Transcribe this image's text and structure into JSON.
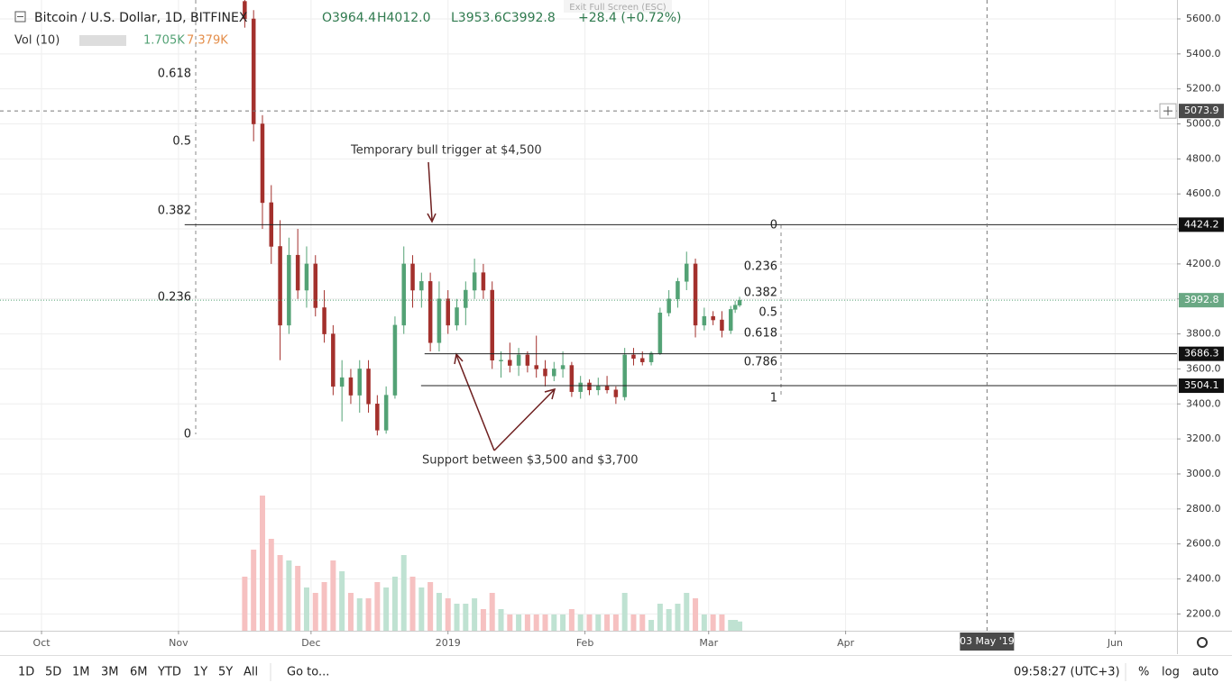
{
  "chart_data": {
    "type": "candlestick",
    "title": "Bitcoin / U.S. Dollar, 1D, BITFINEX",
    "ohlc_labels": [
      "O3964.4",
      "H4012.0",
      "L3953.6",
      "C3992.8",
      "+28.4 (+0.72%)"
    ],
    "volume_title": "Vol (10)",
    "volume_labels": [
      "1.705K",
      "7.379K"
    ],
    "exit_label": "Exit Full Screen (ESC)",
    "colors": {
      "up": "#53a275",
      "down": "#a3302c",
      "up_volume": "#bfe2d2",
      "down_volume": "#f6c1c1",
      "annotation": "#2626a8",
      "arrow": "#6e1f1f"
    },
    "x": [
      46,
      48,
      50,
      52,
      54,
      56,
      58,
      60,
      62,
      64,
      66,
      68,
      70,
      72,
      74,
      76,
      78,
      80,
      82,
      84,
      86,
      88,
      90,
      92,
      94,
      96,
      98,
      100,
      102,
      104,
      106,
      108,
      110,
      112,
      114,
      116,
      118,
      120,
      122,
      124,
      126,
      128,
      130,
      132,
      134,
      136,
      138,
      140,
      142,
      144,
      146,
      148,
      150,
      152,
      154,
      156,
      157,
      158
    ],
    "open": [
      5700,
      5600,
      5000,
      4550,
      4300,
      3850,
      4250,
      4050,
      4200,
      3950,
      3800,
      3500,
      3550,
      3450,
      3600,
      3400,
      3250,
      3450,
      3850,
      4200,
      4050,
      4100,
      3750,
      4000,
      3850,
      3950,
      4050,
      4150,
      4050,
      3650,
      3650,
      3620,
      3680,
      3620,
      3600,
      3560,
      3600,
      3620,
      3470,
      3520,
      3480,
      3500,
      3480,
      3440,
      3680,
      3660,
      3640,
      3690,
      3920,
      4000,
      4100,
      4200,
      3850,
      3900,
      3880,
      3820,
      3940,
      3964.4
    ],
    "high": [
      5720,
      5650,
      5050,
      4650,
      4450,
      4350,
      4400,
      4300,
      4250,
      4050,
      3850,
      3650,
      3600,
      3650,
      3650,
      3450,
      3500,
      3900,
      4300,
      4250,
      4150,
      4150,
      4100,
      4050,
      4000,
      4100,
      4230,
      4200,
      4100,
      3700,
      3750,
      3720,
      3700,
      3790,
      3650,
      3640,
      3700,
      3640,
      3560,
      3540,
      3550,
      3560,
      3500,
      3720,
      3720,
      3700,
      3700,
      3950,
      4050,
      4120,
      4270,
      4230,
      3950,
      3930,
      3930,
      3960,
      3990,
      4012.0
    ],
    "low": [
      5550,
      4900,
      4400,
      4200,
      3650,
      3800,
      4000,
      3950,
      3900,
      3750,
      3450,
      3300,
      3400,
      3350,
      3350,
      3220,
      3230,
      3430,
      3800,
      3950,
      3950,
      3700,
      3700,
      3800,
      3820,
      3850,
      4000,
      4000,
      3600,
      3550,
      3580,
      3560,
      3580,
      3550,
      3500,
      3530,
      3550,
      3440,
      3430,
      3450,
      3450,
      3460,
      3400,
      3420,
      3620,
      3620,
      3620,
      3680,
      3900,
      3950,
      4050,
      3780,
      3820,
      3850,
      3780,
      3800,
      3920,
      3953.6
    ],
    "close": [
      5600,
      5000,
      4550,
      4300,
      3850,
      4250,
      4050,
      4200,
      3950,
      3800,
      3500,
      3550,
      3450,
      3600,
      3400,
      3250,
      3450,
      3850,
      4200,
      4050,
      4100,
      3750,
      4000,
      3850,
      3950,
      4050,
      4150,
      4050,
      3650,
      3650,
      3620,
      3680,
      3620,
      3600,
      3560,
      3600,
      3620,
      3470,
      3520,
      3480,
      3500,
      3480,
      3440,
      3680,
      3660,
      3640,
      3690,
      3920,
      4000,
      4100,
      4200,
      3850,
      3900,
      3880,
      3820,
      3940,
      3964.4,
      3992.8
    ],
    "volume": [
      10,
      15,
      25,
      17,
      14,
      13,
      12,
      8,
      7,
      9,
      13,
      11,
      7,
      6,
      6,
      9,
      8,
      10,
      14,
      10,
      8,
      9,
      7,
      6,
      5,
      5,
      6,
      4,
      7,
      4,
      3,
      3,
      3,
      3,
      3,
      3,
      3,
      4,
      3,
      3,
      3,
      3,
      3,
      7,
      3,
      3,
      2,
      5,
      4,
      5,
      7,
      6,
      3,
      3,
      3,
      2,
      2,
      1.705
    ],
    "volume_lim": [
      0,
      30
    ],
    "xlim": [
      -9.4,
      257
    ],
    "xticks": [
      {
        "value": 0,
        "label": "Oct"
      },
      {
        "value": 31,
        "label": "Nov"
      },
      {
        "value": 61,
        "label": "Dec"
      },
      {
        "value": 92,
        "label": "2019"
      },
      {
        "value": 123,
        "label": "Feb"
      },
      {
        "value": 151,
        "label": "Mar"
      },
      {
        "value": 182,
        "label": "Apr"
      },
      {
        "value": 243,
        "label": "Jun"
      }
    ],
    "ylim": [
      2104,
      5708
    ],
    "yticks": [
      {
        "value": 2200,
        "label": "2200.0"
      },
      {
        "value": 2400,
        "label": "2400.0"
      },
      {
        "value": 2600,
        "label": "2600.0"
      },
      {
        "value": 2800,
        "label": "2800.0"
      },
      {
        "value": 3000,
        "label": "3000.0"
      },
      {
        "value": 3200,
        "label": "3200.0"
      },
      {
        "value": 3400,
        "label": "3400.0"
      },
      {
        "value": 3600,
        "label": "3600.0"
      },
      {
        "value": 3800,
        "label": "3800.0"
      },
      {
        "value": 4000,
        "label": "4000.0"
      },
      {
        "value": 4200,
        "label": "4200.0"
      },
      {
        "value": 4400,
        "label": "4400.0"
      },
      {
        "value": 4600,
        "label": "4600.0"
      },
      {
        "value": 4800,
        "label": "4800.0"
      },
      {
        "value": 5000,
        "label": "5000.0"
      },
      {
        "value": 5200,
        "label": "5200.0"
      },
      {
        "value": 5400,
        "label": "5400.0"
      },
      {
        "value": 5600,
        "label": "5600.0"
      }
    ],
    "grid": true,
    "crosshair": {
      "y": 5073.9,
      "x": {
        "value": 214,
        "label": "03 May '19"
      }
    },
    "last_price": 3992.8,
    "levels": [
      {
        "value": 4424.2,
        "start": 32.4
      },
      {
        "value": 3686.3,
        "start": 86.7
      },
      {
        "value": 3504.1,
        "start": 85.9
      }
    ],
    "fib_left": {
      "levels": [
        0.618,
        0.5,
        0.382,
        0.236,
        0
      ],
      "prices": [
        5286,
        4900,
        4503,
        4009,
        3227
      ]
    },
    "fib_right": {
      "levels": [
        0,
        0.236,
        0.382,
        0.5,
        0.618,
        0.786,
        1
      ],
      "prices": [
        4421,
        4184,
        4035,
        3922,
        3803,
        3638,
        3432
      ]
    },
    "annotations": [
      "Temporary bull trigger at $4,500",
      "Support between $3,500 and $3,700"
    ]
  },
  "toolbar": {
    "ranges": [
      "1D",
      "5D",
      "1M",
      "3M",
      "6M",
      "YTD",
      "1Y",
      "5Y",
      "All"
    ],
    "goto": "Go to...",
    "clock": "09:58:27 (UTC+3)",
    "options": [
      "%",
      "log",
      "auto"
    ]
  }
}
